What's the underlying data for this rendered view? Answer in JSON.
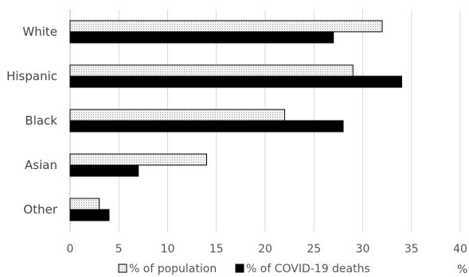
{
  "chart_data": {
    "type": "bar",
    "orientation": "horizontal",
    "categories": [
      "White",
      "Hispanic",
      "Black",
      "Asian",
      "Other"
    ],
    "series": [
      {
        "name": "% of population",
        "values": [
          32,
          29,
          22,
          14,
          3
        ],
        "fill": "#e6e6e6",
        "pattern": "dotted",
        "stroke": "#000000"
      },
      {
        "name": "% of COVID-19 deaths",
        "values": [
          27,
          34,
          28,
          7,
          4
        ],
        "fill": "#000000",
        "stroke": "#000000"
      }
    ],
    "xlim": [
      0,
      40
    ],
    "xticks": [
      "0",
      "5",
      "10",
      "15",
      "20",
      "25",
      "30",
      "35",
      "40"
    ],
    "unit_label": "%",
    "grid": true,
    "legend_position": "bottom"
  }
}
